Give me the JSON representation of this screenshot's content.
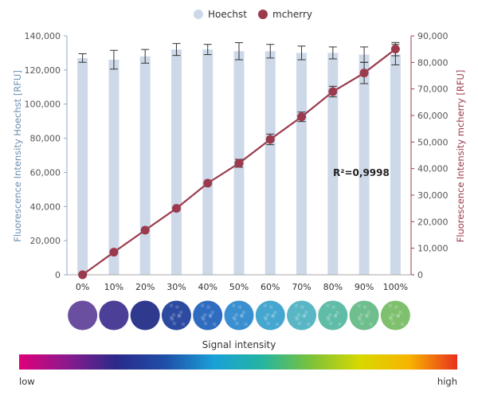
{
  "chart_data": {
    "type": "bar",
    "categories": [
      "0%",
      "10%",
      "20%",
      "30%",
      "40%",
      "50%",
      "60%",
      "70%",
      "80%",
      "90%",
      "100%"
    ],
    "series": [
      {
        "name": "Hoechst",
        "kind": "bar",
        "axis": "left",
        "color": "#cdd9e8",
        "values": [
          127000,
          126000,
          128000,
          132000,
          132000,
          131000,
          131000,
          130000,
          130000,
          129000,
          129000
        ],
        "error": [
          2500,
          5500,
          4000,
          3500,
          3000,
          5000,
          4000,
          4000,
          3500,
          4500,
          6000
        ]
      },
      {
        "name": "mcherry",
        "kind": "line",
        "axis": "right",
        "color": "#9b3a4c",
        "values": [
          0,
          8500,
          16800,
          25000,
          34500,
          42000,
          51000,
          59500,
          69000,
          76000,
          85000
        ],
        "error": [
          0,
          0,
          0,
          0,
          0,
          1500,
          2000,
          1800,
          2000,
          4000,
          2500
        ]
      }
    ],
    "y_left": {
      "label": "Fluorescence Intensity Hoechst [RFU]",
      "ticks": [
        "0",
        "20,000",
        "40,000",
        "60,000",
        "80,000",
        "100,000",
        "120,000",
        "140,000"
      ],
      "range": [
        0,
        140000
      ],
      "color": "#6e90b0"
    },
    "y_right": {
      "label": "Fluorescence Intensity mcherry [RFU]",
      "ticks": [
        "0",
        "10,000",
        "20,000",
        "30,000",
        "40,000",
        "50,000",
        "60,000",
        "70,000",
        "80,000",
        "90,000"
      ],
      "range": [
        0,
        90000
      ],
      "color": "#9b3a4c"
    },
    "annotation": "R²=0,9998",
    "legend_position": "top-center",
    "grid": false
  },
  "legend": {
    "items": [
      "Hoechst",
      "mcherry"
    ]
  },
  "wells": {
    "count": 11,
    "icon": "fluorescence-well-icon",
    "colors": [
      "#6a4fa0",
      "#4b3f98",
      "#2f3a8f",
      "#2c4aa0",
      "#2f6cc0",
      "#3a8fd0",
      "#45a6cf",
      "#59b6c4",
      "#5fbca6",
      "#6ebe8e",
      "#7fc06e"
    ]
  },
  "color_scale": {
    "title": "Signal intensity",
    "low_label": "low",
    "high_label": "high",
    "gradient_colors": [
      "#e0007a",
      "#8a1a8e",
      "#2a2a8a",
      "#1f4fa8",
      "#1aa0d8",
      "#25b5a0",
      "#7cc23a",
      "#d8d800",
      "#f7b500",
      "#e8301e"
    ]
  }
}
